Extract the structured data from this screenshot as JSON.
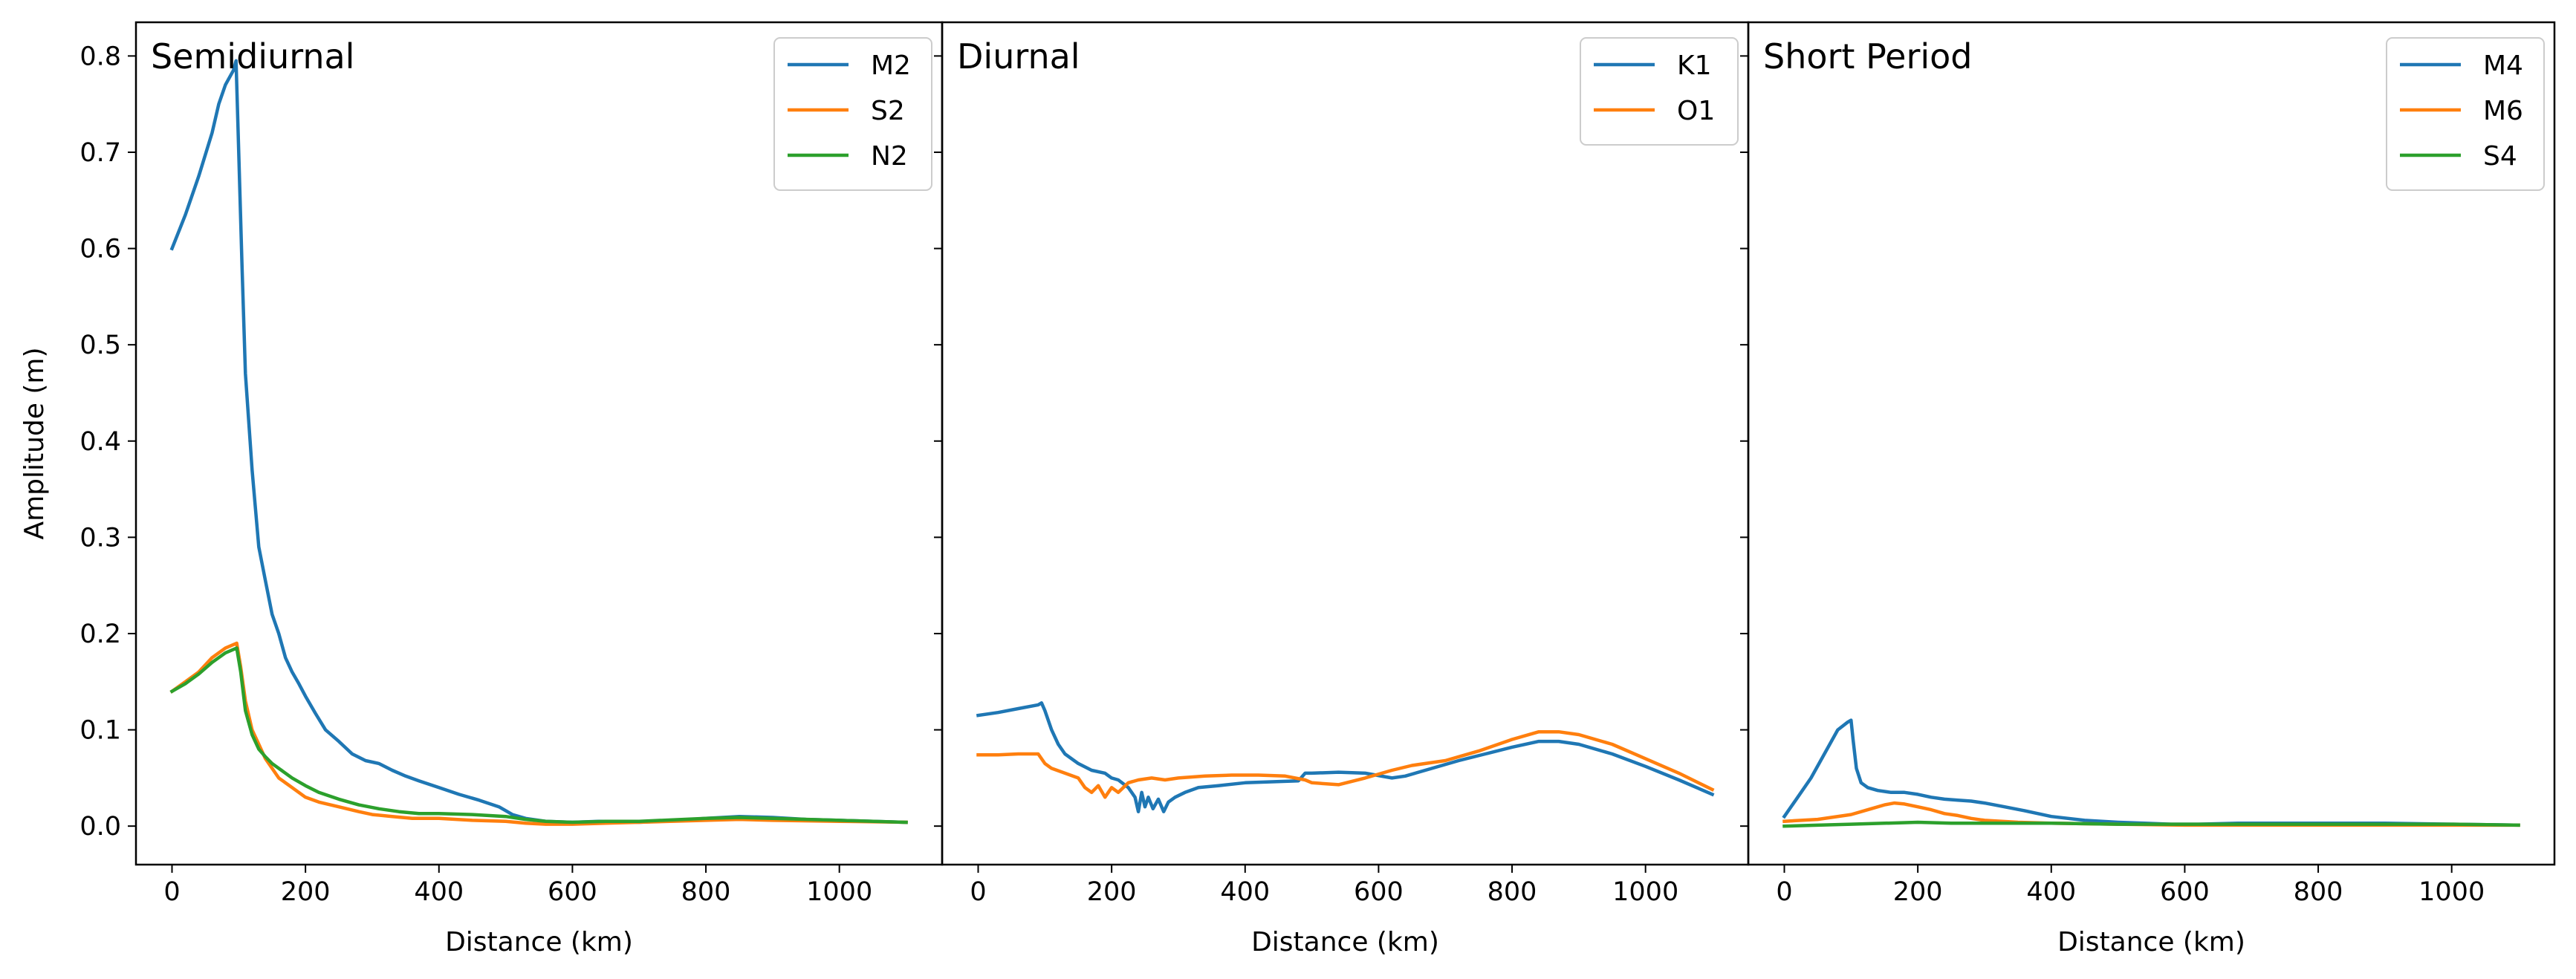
{
  "colors": {
    "blue": "#1f77b4",
    "orange": "#ff7f0e",
    "green": "#2ca02c"
  },
  "shared": {
    "ylabel": "Amplitude (m)",
    "xlabel": "Distance (km)",
    "xlim": [
      -54,
      1154
    ],
    "ylim": [
      -0.04,
      0.835
    ],
    "xticks": [
      0,
      200,
      400,
      600,
      800,
      1000
    ],
    "yticks": [
      0.0,
      0.1,
      0.2,
      0.3,
      0.4,
      0.5,
      0.6,
      0.7,
      0.8
    ]
  },
  "chart_data": [
    {
      "type": "line",
      "title": "Semidiurnal",
      "xlabel": "Distance (km)",
      "ylabel": "Amplitude (m)",
      "legend_position": "top-right",
      "series": [
        {
          "name": "M2",
          "color": "#1f77b4",
          "x": [
            0,
            20,
            40,
            60,
            70,
            80,
            88,
            92,
            96,
            100,
            105,
            110,
            115,
            120,
            125,
            130,
            140,
            150,
            160,
            170,
            180,
            190,
            200,
            215,
            230,
            250,
            270,
            290,
            310,
            330,
            350,
            370,
            400,
            430,
            460,
            490,
            510,
            530,
            560,
            600,
            640,
            700,
            760,
            800,
            850,
            900,
            950,
            1000,
            1050,
            1100
          ],
          "y": [
            0.6,
            0.635,
            0.675,
            0.72,
            0.75,
            0.77,
            0.78,
            0.785,
            0.795,
            0.7,
            0.58,
            0.47,
            0.42,
            0.37,
            0.33,
            0.29,
            0.255,
            0.22,
            0.2,
            0.175,
            0.16,
            0.148,
            0.135,
            0.117,
            0.1,
            0.088,
            0.075,
            0.068,
            0.065,
            0.058,
            0.052,
            0.047,
            0.04,
            0.033,
            0.027,
            0.02,
            0.012,
            0.008,
            0.005,
            0.004,
            0.005,
            0.004,
            0.006,
            0.008,
            0.01,
            0.009,
            0.007,
            0.006,
            0.005,
            0.004
          ]
        },
        {
          "name": "S2",
          "color": "#ff7f0e",
          "x": [
            0,
            20,
            40,
            60,
            80,
            97,
            103,
            110,
            120,
            130,
            140,
            150,
            160,
            180,
            200,
            220,
            250,
            280,
            300,
            330,
            360,
            400,
            450,
            500,
            530,
            560,
            600,
            650,
            700,
            800,
            850,
            900,
            1000,
            1100
          ],
          "y": [
            0.14,
            0.15,
            0.16,
            0.175,
            0.185,
            0.19,
            0.165,
            0.13,
            0.1,
            0.085,
            0.07,
            0.06,
            0.05,
            0.04,
            0.03,
            0.025,
            0.02,
            0.015,
            0.012,
            0.01,
            0.008,
            0.008,
            0.006,
            0.005,
            0.003,
            0.002,
            0.002,
            0.003,
            0.004,
            0.006,
            0.007,
            0.006,
            0.005,
            0.004
          ]
        },
        {
          "name": "N2",
          "color": "#2ca02c",
          "x": [
            0,
            20,
            40,
            60,
            80,
            97,
            103,
            110,
            120,
            130,
            140,
            150,
            160,
            180,
            200,
            220,
            250,
            280,
            310,
            340,
            370,
            400,
            450,
            500,
            530,
            560,
            600,
            650,
            700,
            800,
            850,
            900,
            1000,
            1100
          ],
          "y": [
            0.14,
            0.148,
            0.158,
            0.17,
            0.18,
            0.185,
            0.16,
            0.12,
            0.095,
            0.08,
            0.072,
            0.065,
            0.06,
            0.05,
            0.042,
            0.035,
            0.028,
            0.022,
            0.018,
            0.015,
            0.013,
            0.013,
            0.012,
            0.01,
            0.007,
            0.005,
            0.004,
            0.005,
            0.005,
            0.008,
            0.009,
            0.008,
            0.006,
            0.004
          ]
        }
      ]
    },
    {
      "type": "line",
      "title": "Diurnal",
      "xlabel": "Distance (km)",
      "legend_position": "top-right",
      "series": [
        {
          "name": "K1",
          "color": "#1f77b4",
          "x": [
            0,
            30,
            60,
            90,
            95,
            100,
            110,
            120,
            130,
            150,
            170,
            190,
            200,
            210,
            225,
            235,
            240,
            245,
            250,
            255,
            262,
            270,
            278,
            285,
            295,
            310,
            330,
            360,
            400,
            440,
            480,
            490,
            500,
            540,
            580,
            620,
            640,
            680,
            720,
            760,
            800,
            840,
            870,
            900,
            950,
            1000,
            1050,
            1100
          ],
          "y": [
            0.115,
            0.118,
            0.122,
            0.126,
            0.128,
            0.12,
            0.1,
            0.085,
            0.075,
            0.065,
            0.058,
            0.055,
            0.05,
            0.048,
            0.04,
            0.03,
            0.015,
            0.035,
            0.02,
            0.03,
            0.018,
            0.028,
            0.015,
            0.025,
            0.03,
            0.035,
            0.04,
            0.042,
            0.045,
            0.046,
            0.047,
            0.055,
            0.055,
            0.056,
            0.055,
            0.05,
            0.052,
            0.06,
            0.068,
            0.075,
            0.082,
            0.088,
            0.088,
            0.085,
            0.075,
            0.062,
            0.048,
            0.033
          ]
        },
        {
          "name": "O1",
          "color": "#ff7f0e",
          "x": [
            0,
            30,
            60,
            90,
            100,
            110,
            130,
            150,
            160,
            170,
            180,
            190,
            200,
            210,
            225,
            240,
            260,
            280,
            300,
            340,
            380,
            420,
            460,
            490,
            500,
            540,
            580,
            620,
            650,
            700,
            750,
            800,
            840,
            870,
            900,
            950,
            1000,
            1050,
            1100
          ],
          "y": [
            0.074,
            0.074,
            0.075,
            0.075,
            0.065,
            0.06,
            0.055,
            0.05,
            0.04,
            0.035,
            0.042,
            0.03,
            0.04,
            0.035,
            0.045,
            0.048,
            0.05,
            0.048,
            0.05,
            0.052,
            0.053,
            0.053,
            0.052,
            0.048,
            0.045,
            0.043,
            0.05,
            0.058,
            0.063,
            0.068,
            0.078,
            0.09,
            0.098,
            0.098,
            0.095,
            0.085,
            0.07,
            0.055,
            0.038
          ]
        }
      ]
    },
    {
      "type": "line",
      "title": "Short Period",
      "xlabel": "Distance (km)",
      "legend_position": "top-right",
      "series": [
        {
          "name": "M4",
          "color": "#1f77b4",
          "x": [
            0,
            20,
            40,
            60,
            80,
            95,
            100,
            103,
            108,
            115,
            125,
            140,
            160,
            180,
            200,
            220,
            240,
            260,
            280,
            300,
            330,
            360,
            400,
            450,
            500,
            540,
            580,
            620,
            680,
            750,
            800,
            900,
            1000,
            1100
          ],
          "y": [
            0.01,
            0.03,
            0.05,
            0.075,
            0.1,
            0.108,
            0.11,
            0.09,
            0.06,
            0.045,
            0.04,
            0.037,
            0.035,
            0.035,
            0.033,
            0.03,
            0.028,
            0.027,
            0.026,
            0.024,
            0.02,
            0.016,
            0.01,
            0.006,
            0.004,
            0.003,
            0.002,
            0.002,
            0.003,
            0.003,
            0.003,
            0.003,
            0.002,
            0.001
          ]
        },
        {
          "name": "M6",
          "color": "#ff7f0e",
          "x": [
            0,
            50,
            100,
            130,
            150,
            165,
            180,
            200,
            220,
            240,
            260,
            280,
            300,
            350,
            400,
            500,
            600,
            800,
            1000,
            1100
          ],
          "y": [
            0.005,
            0.007,
            0.012,
            0.018,
            0.022,
            0.024,
            0.023,
            0.02,
            0.017,
            0.013,
            0.011,
            0.008,
            0.006,
            0.004,
            0.003,
            0.002,
            0.001,
            0.001,
            0.001,
            0.001
          ]
        },
        {
          "name": "S4",
          "color": "#2ca02c",
          "x": [
            0,
            50,
            100,
            150,
            200,
            250,
            300,
            400,
            500,
            600,
            800,
            1000,
            1100
          ],
          "y": [
            0.0,
            0.001,
            0.002,
            0.003,
            0.004,
            0.003,
            0.003,
            0.003,
            0.002,
            0.002,
            0.002,
            0.002,
            0.001
          ]
        }
      ]
    }
  ]
}
